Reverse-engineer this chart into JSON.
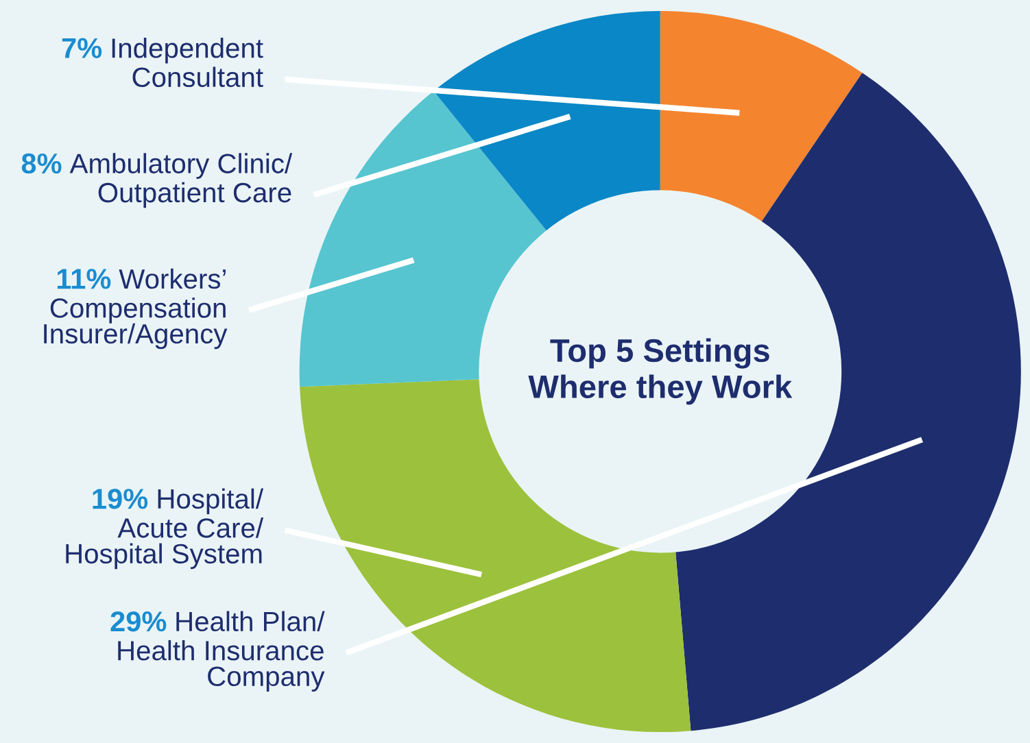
{
  "chart_data": {
    "type": "donut",
    "title": "Top 5 Settings\nWhere they Work",
    "categories": [
      "Independent\nConsultant",
      "Health Plan/\nHealth Insurance\nCompany",
      "Hospital/\nAcute Care/\nHospital System",
      "Workers’\nCompensation\nInsurer/Agency",
      "Ambulatory Clinic/\nOutpatient Care"
    ],
    "values": [
      7,
      29,
      19,
      11,
      8
    ],
    "colors": [
      "#f5842f",
      "#1e2d6e",
      "#9cc13c",
      "#56c5d0",
      "#0a87c6"
    ],
    "value_labels": [
      "7%",
      "29%",
      "19%",
      "11%",
      "8%"
    ],
    "legend": false
  }
}
